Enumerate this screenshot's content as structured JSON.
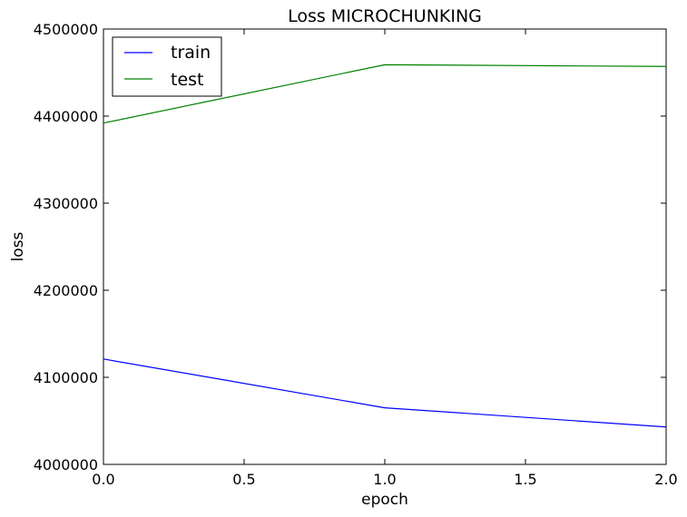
{
  "chart_data": {
    "type": "line",
    "title": "Loss MICROCHUNKING",
    "xlabel": "epoch",
    "ylabel": "loss",
    "xlim": [
      0.0,
      2.0
    ],
    "ylim": [
      4000000,
      4500000
    ],
    "x_ticks": [
      0.0,
      0.5,
      1.0,
      1.5,
      2.0
    ],
    "x_tick_labels": [
      "0.0",
      "0.5",
      "1.0",
      "1.5",
      "2.0"
    ],
    "y_ticks": [
      4000000,
      4100000,
      4200000,
      4300000,
      4400000,
      4500000
    ],
    "y_tick_labels": [
      "4000000",
      "4100000",
      "4200000",
      "4300000",
      "4400000",
      "4500000"
    ],
    "grid": false,
    "legend_position": "top-left",
    "x": [
      0.0,
      1.0,
      2.0
    ],
    "series": [
      {
        "name": "train",
        "color": "#0000ff",
        "values": [
          4121000,
          4065000,
          4043000
        ]
      },
      {
        "name": "test",
        "color": "#008000",
        "values": [
          4392000,
          4459000,
          4457000
        ]
      }
    ]
  }
}
